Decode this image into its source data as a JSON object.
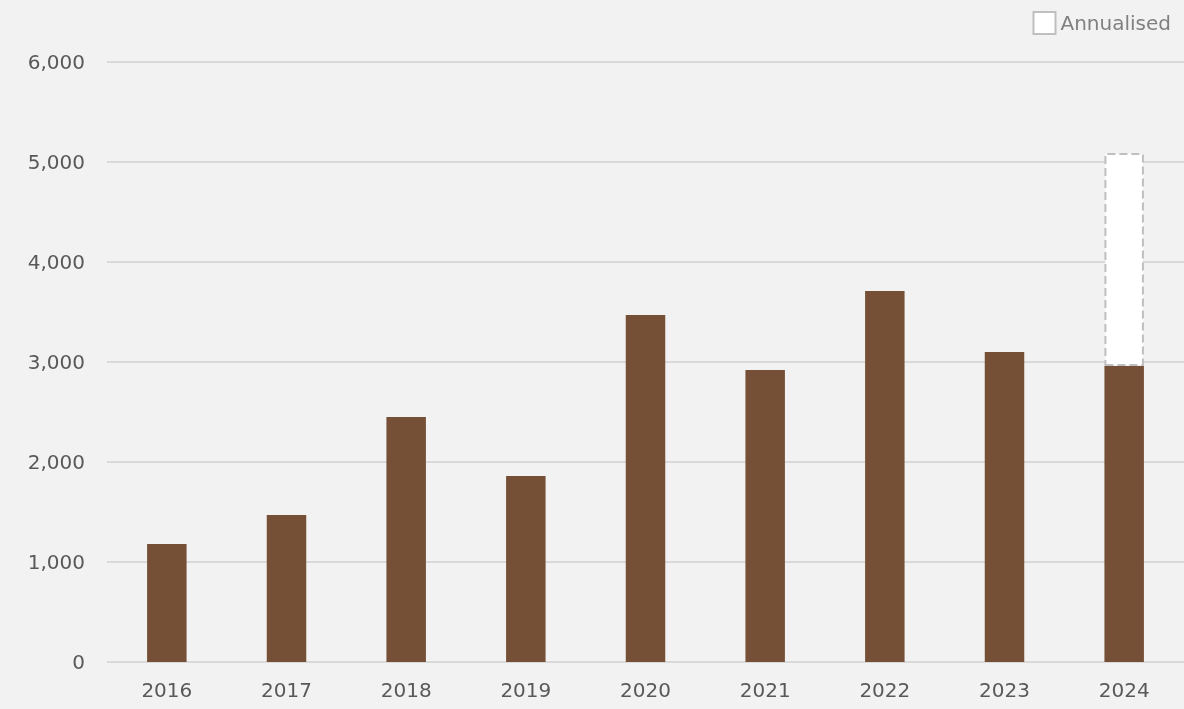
{
  "chart_data": {
    "type": "bar",
    "categories": [
      "2016",
      "2017",
      "2018",
      "2019",
      "2020",
      "2021",
      "2022",
      "2023",
      "2024"
    ],
    "series": [
      {
        "color": "#755036",
        "values": [
          1180,
          1470,
          2450,
          1860,
          3470,
          2920,
          3710,
          3100,
          2960
        ]
      },
      {
        "name": "Annualised",
        "color": "#ffffff",
        "line_style": "dashed",
        "values": [
          null,
          null,
          null,
          null,
          null,
          null,
          null,
          null,
          2130
        ]
      }
    ],
    "stacked": true,
    "ylim": [
      0,
      6000
    ],
    "yticks": [
      0,
      {
        "value": 1000,
        "label": "1,000"
      },
      {
        "value": 2000,
        "label": "2,000"
      },
      {
        "value": 3000,
        "label": "3,000"
      },
      {
        "value": 4000,
        "label": "4,000"
      },
      {
        "value": 5000,
        "label": "5,000"
      },
      {
        "value": 6000,
        "label": "6,000"
      }
    ],
    "grid": "y",
    "legend": "top right"
  }
}
